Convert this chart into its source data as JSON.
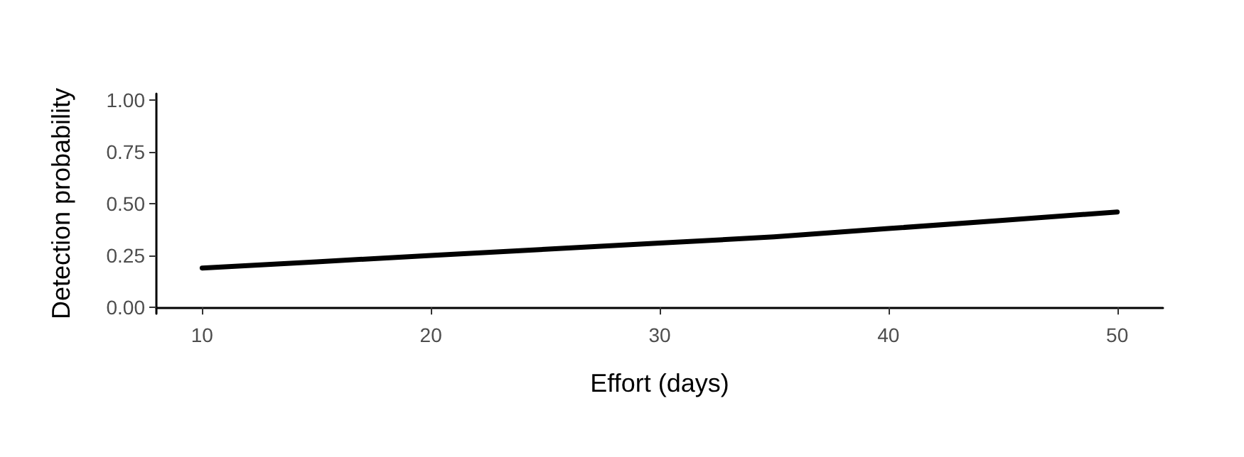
{
  "chart_data": {
    "type": "line",
    "xlabel": "Effort (days)",
    "ylabel": "Detection probability",
    "x": [
      10,
      15,
      20,
      25,
      30,
      35,
      40,
      45,
      50
    ],
    "series": [
      {
        "color": "#000000",
        "values": [
          0.19,
          0.22,
          0.25,
          0.28,
          0.31,
          0.34,
          0.38,
          0.42,
          0.46
        ]
      }
    ],
    "xlim": [
      8,
      52
    ],
    "xticks": [
      10,
      20,
      30,
      40,
      50
    ],
    "ylim": [
      -0.03,
      1.03
    ],
    "yticks": [
      {
        "value": 0,
        "label": "0.00"
      },
      {
        "value": 0.25,
        "label": "0.25"
      },
      {
        "value": 0.5,
        "label": "0.50"
      },
      {
        "value": 0.75,
        "label": "0.75"
      },
      {
        "value": 1,
        "label": "1.00"
      }
    ],
    "grid": false,
    "marker": "none",
    "line_style": "solid"
  }
}
